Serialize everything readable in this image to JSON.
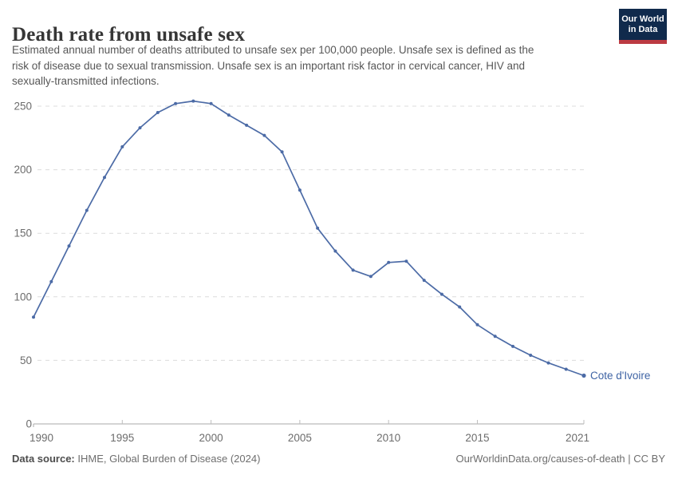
{
  "header": {
    "title": "Death rate from unsafe sex",
    "subtitle_lines": [
      "Estimated annual number of deaths attributed to unsafe sex per 100,000 people. Unsafe sex is defined as the",
      "risk of disease due to sexual transmission. Unsafe sex is an important risk factor in cervical cancer, HIV and",
      "sexually-transmitted infections."
    ],
    "logo": {
      "line1": "Our World",
      "line2": "in Data",
      "bg_color": "#102A4C",
      "accent_color": "#BC3A42"
    }
  },
  "chart_data": {
    "type": "line",
    "title": "Death rate from unsafe sex",
    "xlabel": "",
    "ylabel": "",
    "xlim": [
      1990,
      2021
    ],
    "ylim": [
      0,
      250
    ],
    "x_ticks": [
      1990,
      1995,
      2000,
      2005,
      2010,
      2015,
      2021
    ],
    "y_ticks": [
      0,
      50,
      100,
      150,
      200,
      250
    ],
    "grid": true,
    "grid_style": "dashed",
    "series": [
      {
        "name": "Cote d'Ivoire",
        "color": "#4C6BA6",
        "label_color": "#3E63A4",
        "x": [
          1990,
          1991,
          1992,
          1993,
          1994,
          1995,
          1996,
          1997,
          1998,
          1999,
          2000,
          2001,
          2002,
          2003,
          2004,
          2005,
          2006,
          2007,
          2008,
          2009,
          2010,
          2011,
          2012,
          2013,
          2014,
          2015,
          2016,
          2017,
          2018,
          2019,
          2020,
          2021
        ],
        "values": [
          84,
          112,
          140,
          168,
          194,
          218,
          233,
          245,
          252,
          254,
          252,
          243,
          235,
          227,
          214,
          184,
          154,
          136,
          121,
          116,
          127,
          128,
          113,
          102,
          92,
          78,
          69,
          61,
          54,
          48,
          43,
          38
        ]
      }
    ]
  },
  "footer": {
    "source_label": "Data source:",
    "source_text": " IHME, Global Burden of Disease (2024)",
    "rights": "OurWorldinData.org/causes-of-death | CC BY"
  }
}
